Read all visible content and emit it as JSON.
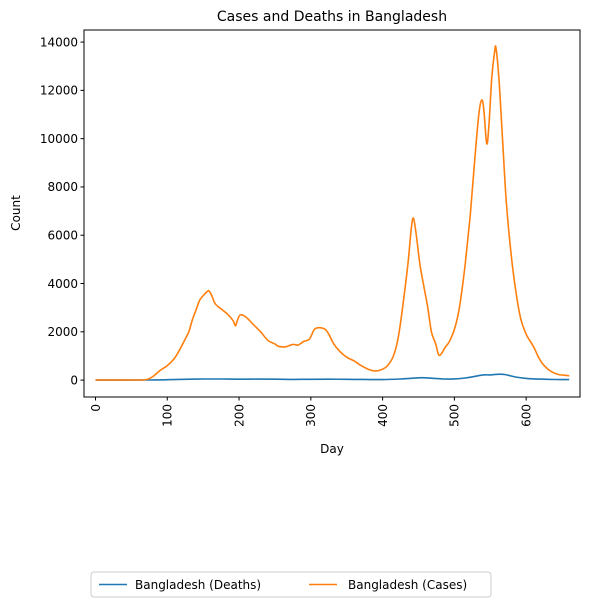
{
  "chart_data": {
    "type": "line",
    "title": "Cases and Deaths in Bangladesh",
    "xlabel": "Day",
    "ylabel": "Count",
    "xlim": [
      -16,
      675
    ],
    "ylim": [
      -700,
      14500
    ],
    "xticks": [
      0,
      100,
      200,
      300,
      400,
      500,
      600
    ],
    "yticks": [
      0,
      2000,
      4000,
      6000,
      8000,
      10000,
      12000,
      14000
    ],
    "grid": false,
    "legend_position": "bottom-center, below plot",
    "series": [
      {
        "name": "Bangladesh (Deaths)",
        "color": "#1f77b4",
        "points": [
          [
            0,
            0
          ],
          [
            50,
            2
          ],
          [
            75,
            5
          ],
          [
            100,
            15
          ],
          [
            125,
            35
          ],
          [
            150,
            45
          ],
          [
            175,
            45
          ],
          [
            200,
            38
          ],
          [
            225,
            42
          ],
          [
            250,
            38
          ],
          [
            275,
            30
          ],
          [
            300,
            35
          ],
          [
            325,
            38
          ],
          [
            350,
            32
          ],
          [
            375,
            28
          ],
          [
            400,
            22
          ],
          [
            425,
            45
          ],
          [
            440,
            75
          ],
          [
            455,
            100
          ],
          [
            470,
            75
          ],
          [
            485,
            45
          ],
          [
            500,
            50
          ],
          [
            515,
            85
          ],
          [
            530,
            160
          ],
          [
            540,
            215
          ],
          [
            550,
            215
          ],
          [
            560,
            240
          ],
          [
            570,
            230
          ],
          [
            585,
            130
          ],
          [
            600,
            70
          ],
          [
            620,
            40
          ],
          [
            640,
            25
          ],
          [
            660,
            20
          ]
        ]
      },
      {
        "name": "Bangladesh (Cases)",
        "color": "#ff7f0e",
        "points": [
          [
            0,
            0
          ],
          [
            20,
            2
          ],
          [
            40,
            2
          ],
          [
            60,
            5
          ],
          [
            72,
            30
          ],
          [
            80,
            150
          ],
          [
            90,
            400
          ],
          [
            100,
            600
          ],
          [
            110,
            900
          ],
          [
            118,
            1300
          ],
          [
            125,
            1700
          ],
          [
            130,
            2000
          ],
          [
            135,
            2500
          ],
          [
            140,
            2900
          ],
          [
            145,
            3300
          ],
          [
            150,
            3500
          ],
          [
            155,
            3650
          ],
          [
            158,
            3700
          ],
          [
            162,
            3500
          ],
          [
            167,
            3150
          ],
          [
            175,
            2950
          ],
          [
            185,
            2700
          ],
          [
            192,
            2450
          ],
          [
            195,
            2250
          ],
          [
            198,
            2500
          ],
          [
            202,
            2700
          ],
          [
            210,
            2600
          ],
          [
            220,
            2300
          ],
          [
            230,
            2000
          ],
          [
            240,
            1650
          ],
          [
            250,
            1500
          ],
          [
            255,
            1400
          ],
          [
            265,
            1380
          ],
          [
            275,
            1480
          ],
          [
            282,
            1450
          ],
          [
            290,
            1600
          ],
          [
            298,
            1700
          ],
          [
            305,
            2100
          ],
          [
            312,
            2170
          ],
          [
            320,
            2100
          ],
          [
            325,
            1900
          ],
          [
            332,
            1500
          ],
          [
            340,
            1200
          ],
          [
            350,
            950
          ],
          [
            360,
            800
          ],
          [
            370,
            600
          ],
          [
            380,
            450
          ],
          [
            390,
            380
          ],
          [
            400,
            450
          ],
          [
            407,
            600
          ],
          [
            415,
            1000
          ],
          [
            422,
            1800
          ],
          [
            430,
            3500
          ],
          [
            436,
            5000
          ],
          [
            440,
            6300
          ],
          [
            443,
            6700
          ],
          [
            447,
            6000
          ],
          [
            452,
            4800
          ],
          [
            458,
            3800
          ],
          [
            463,
            3000
          ],
          [
            468,
            2000
          ],
          [
            474,
            1500
          ],
          [
            478,
            1050
          ],
          [
            482,
            1100
          ],
          [
            487,
            1350
          ],
          [
            493,
            1600
          ],
          [
            500,
            2100
          ],
          [
            507,
            3000
          ],
          [
            515,
            4800
          ],
          [
            522,
            6800
          ],
          [
            528,
            9000
          ],
          [
            534,
            11000
          ],
          [
            538,
            11600
          ],
          [
            541,
            11200
          ],
          [
            545,
            9800
          ],
          [
            548,
            10500
          ],
          [
            552,
            12500
          ],
          [
            556,
            13600
          ],
          [
            558,
            13750
          ],
          [
            562,
            12500
          ],
          [
            567,
            10000
          ],
          [
            572,
            7500
          ],
          [
            578,
            5500
          ],
          [
            585,
            3800
          ],
          [
            592,
            2600
          ],
          [
            600,
            1900
          ],
          [
            610,
            1400
          ],
          [
            618,
            900
          ],
          [
            625,
            600
          ],
          [
            635,
            350
          ],
          [
            645,
            230
          ],
          [
            655,
            200
          ],
          [
            660,
            180
          ]
        ]
      }
    ]
  }
}
